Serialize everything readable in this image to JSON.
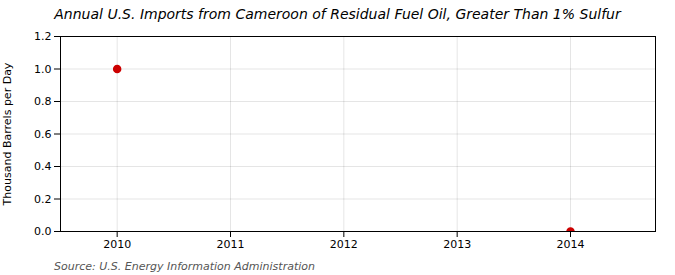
{
  "chart_data": {
    "type": "scatter",
    "title": "Annual U.S. Imports from Cameroon of Residual Fuel Oil, Greater Than 1% Sulfur",
    "ylabel": "Thousand Barrels per Day",
    "source": "Source: U.S. Energy Information Administration",
    "x": [
      2010,
      2014
    ],
    "values": [
      1.0,
      0.0
    ],
    "color": "#cc0000",
    "marker": "circle",
    "xlim": [
      2009.5,
      2014.75
    ],
    "xticks": [
      2010,
      2011,
      2012,
      2013,
      2014
    ],
    "ylim": [
      0.0,
      1.2
    ],
    "yticks": [
      {
        "value": 0,
        "label": "0.0"
      },
      0.2,
      0.4,
      0.6,
      0.8,
      {
        "value": 1,
        "label": "1.0"
      },
      1.2
    ],
    "grid": true
  }
}
